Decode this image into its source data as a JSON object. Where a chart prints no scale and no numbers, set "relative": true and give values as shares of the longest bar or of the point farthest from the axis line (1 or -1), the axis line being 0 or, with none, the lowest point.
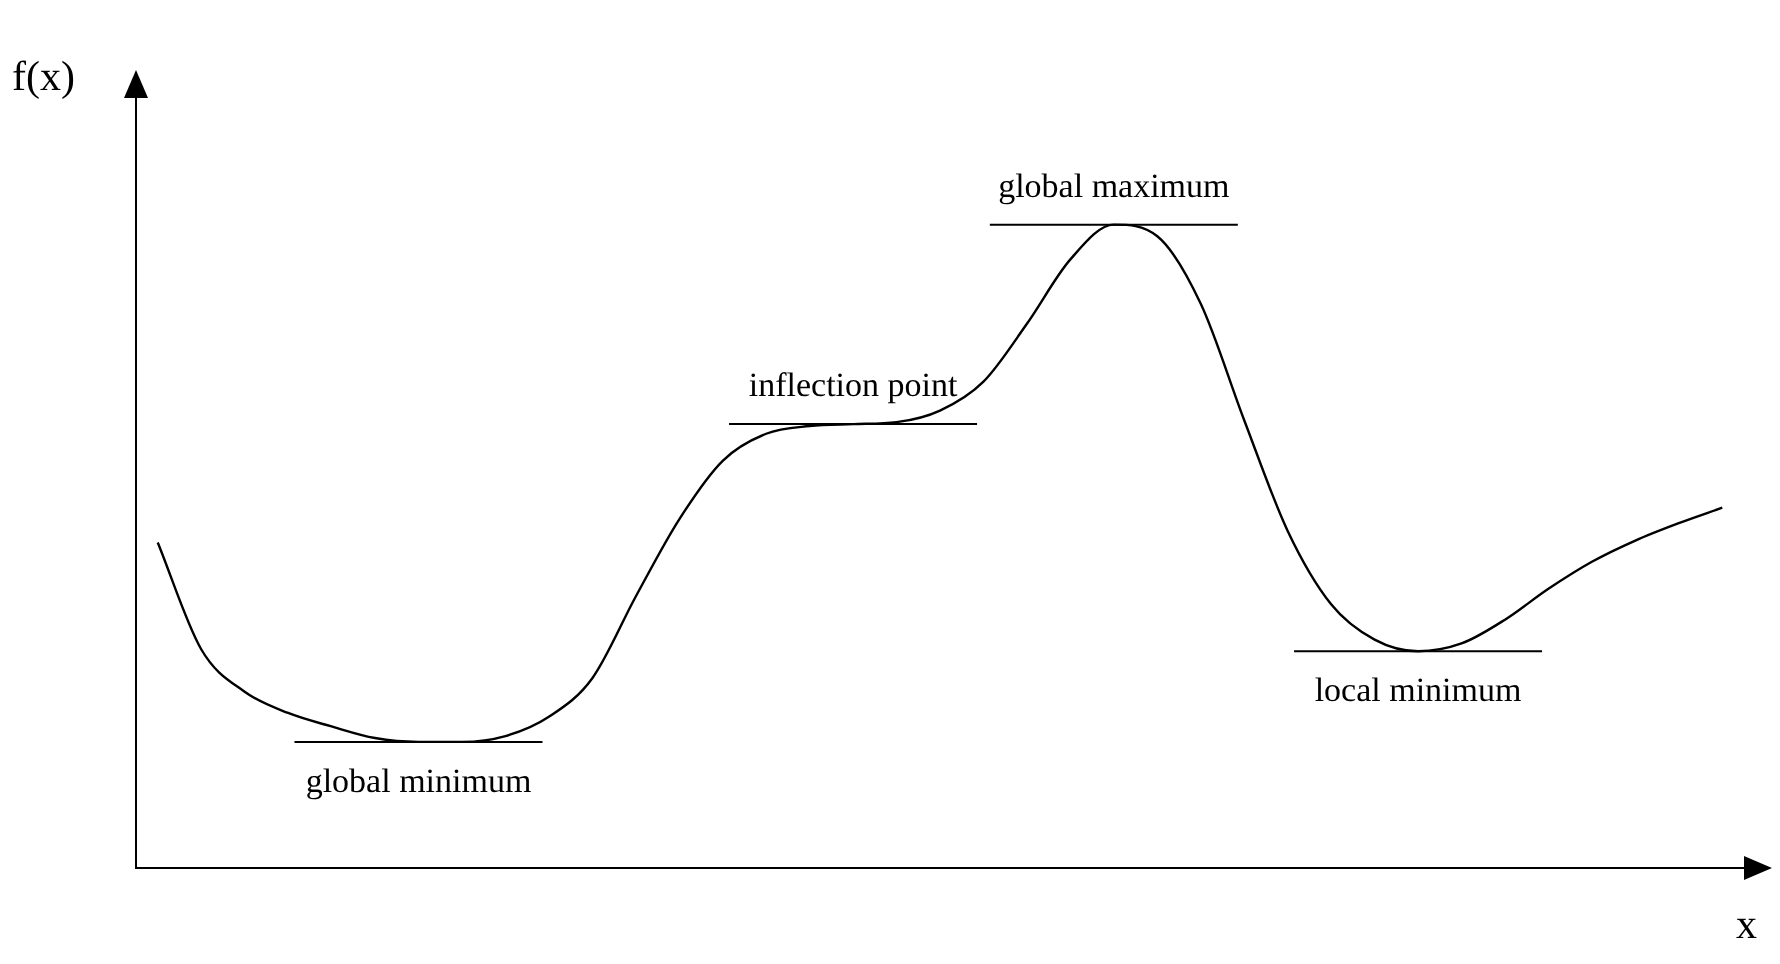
{
  "chart_data": {
    "type": "line",
    "relative": true,
    "tick_labels": false,
    "xlabel": "x",
    "ylabel": "f(x)",
    "categories": [
      null,
      null,
      null,
      null,
      null,
      null,
      null,
      null,
      null,
      null,
      null,
      null,
      null,
      null,
      null,
      null,
      null,
      null,
      null,
      null,
      null,
      null,
      null,
      null,
      null,
      null,
      null,
      null,
      null,
      null,
      null,
      null,
      null,
      null,
      null,
      null,
      null
    ],
    "series": [
      {
        "color": "#000000",
        "values": [
          0.506,
          0.34,
          0.274,
          0.241,
          0.22,
          0.202,
          0.196,
          0.196,
          0.205,
          0.235,
          0.295,
          0.422,
          0.542,
          0.633,
          0.675,
          0.687,
          0.69,
          0.693,
          0.711,
          0.756,
          0.846,
          0.946,
          1.0,
          0.982,
          0.877,
          0.696,
          0.524,
          0.41,
          0.355,
          0.337,
          0.349,
          0.386,
          0.434,
          0.476,
          0.509,
          0.536,
          0.56
        ]
      }
    ],
    "annotations": [
      {
        "text": "global minimum",
        "y": 0.196
      },
      {
        "text": "inflection point",
        "y": 0.69
      },
      {
        "text": "global maximum",
        "y": 1.0
      },
      {
        "text": "local minimum",
        "y": 0.337
      }
    ]
  }
}
